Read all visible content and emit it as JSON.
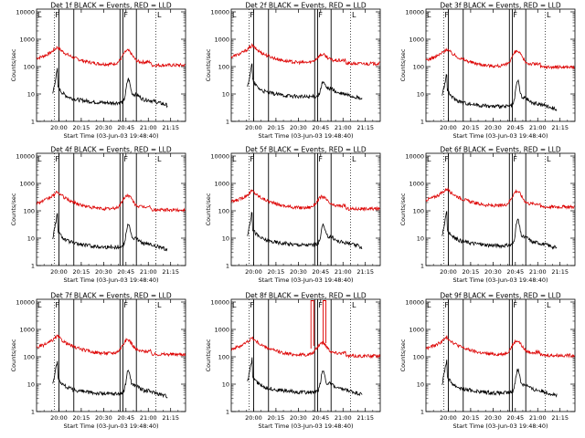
{
  "x_axis": {
    "label": "Start Time (03-Jun-03 19:48:40)",
    "ticks": [
      "20:00",
      "20:15",
      "20:30",
      "20:45",
      "21:00",
      "21:15"
    ],
    "tick_minutes": [
      0,
      15,
      30,
      45,
      60,
      75
    ],
    "range_minutes": [
      -15,
      85
    ]
  },
  "y_axis": {
    "label": "Counts/sec",
    "ticks": [
      "1",
      "10",
      "100",
      "1000",
      "10000"
    ],
    "log_range": [
      0,
      4.1
    ]
  },
  "colors": {
    "events": "#000000",
    "lld": "#dd0000"
  },
  "markers": {
    "first": "F",
    "last": "L"
  },
  "chart_data": [
    {
      "type": "line",
      "title": "Det 1f BLACK = Events, RED = LLD",
      "events_scale": 0.75,
      "lld_scale": 1.05,
      "flare": 1.0,
      "spike": 0
    },
    {
      "type": "line",
      "title": "Det 2f BLACK = Events, RED = LLD",
      "events_scale": 1.25,
      "lld_scale": 1.2,
      "flare": 0.55,
      "spike": 0
    },
    {
      "type": "line",
      "title": "Det 3f BLACK = Events, RED = LLD",
      "events_scale": 0.55,
      "lld_scale": 0.9,
      "flare": 1.1,
      "spike": 0
    },
    {
      "type": "line",
      "title": "Det 4f BLACK = Events, RED = LLD",
      "events_scale": 0.75,
      "lld_scale": 1.0,
      "flare": 1.0,
      "spike": 0
    },
    {
      "type": "line",
      "title": "Det 5f BLACK = Events, RED = LLD",
      "events_scale": 0.9,
      "lld_scale": 1.1,
      "flare": 0.8,
      "spike": 0
    },
    {
      "type": "line",
      "title": "Det 6f BLACK = Events, RED = LLD",
      "events_scale": 0.85,
      "lld_scale": 1.3,
      "flare": 1.1,
      "spike": 0
    },
    {
      "type": "line",
      "title": "Det 7f BLACK = Events, RED = LLD",
      "events_scale": 0.7,
      "lld_scale": 1.15,
      "flare": 1.0,
      "spike": 0
    },
    {
      "type": "line",
      "title": "Det 8f BLACK = Events, RED = LLD",
      "events_scale": 0.8,
      "lld_scale": 1.0,
      "flare": 0.9,
      "spike": 1
    },
    {
      "type": "line",
      "title": "Det 9f BLACK = Events, RED = LLD",
      "events_scale": 0.75,
      "lld_scale": 1.05,
      "flare": 1.0,
      "spike": 0
    }
  ]
}
